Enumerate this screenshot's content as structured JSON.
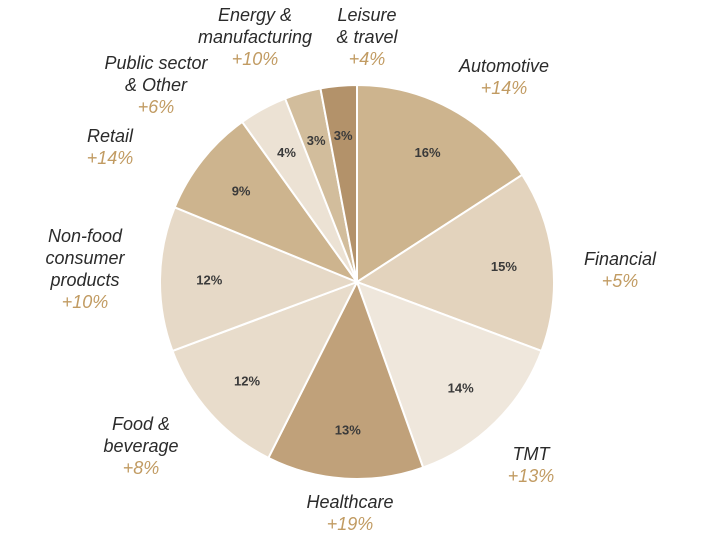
{
  "chart_data": {
    "type": "pie",
    "slices": [
      {
        "name": "Automotive",
        "value": 16,
        "value_label": "16%",
        "growth": "+14%",
        "color": "#cdb48e"
      },
      {
        "name": "Financial",
        "value": 15,
        "value_label": "15%",
        "growth": "+5%",
        "color": "#e3d3bd"
      },
      {
        "name": "TMT",
        "value": 14,
        "value_label": "14%",
        "growth": "+13%",
        "color": "#efe7dc"
      },
      {
        "name": "Healthcare",
        "value": 13,
        "value_label": "13%",
        "growth": "+19%",
        "color": "#c0a17a"
      },
      {
        "name": "Food & beverage",
        "value": 12,
        "value_label": "12%",
        "growth": "+8%",
        "color": "#e8dccb"
      },
      {
        "name": "Non-food consumer products",
        "value": 12,
        "value_label": "12%",
        "growth": "+10%",
        "color": "#e6d9c7"
      },
      {
        "name": "Retail",
        "value": 9,
        "value_label": "9%",
        "growth": "+14%",
        "color": "#cdb48e"
      },
      {
        "name": "Public sector & Other",
        "value": 4,
        "value_label": "4%",
        "growth": "+6%",
        "color": "#ece2d4"
      },
      {
        "name": "Energy & manufacturing",
        "value": 3,
        "value_label": "3%",
        "growth": "+10%",
        "color": "#d2bd9c"
      },
      {
        "name": "Leisure & travel",
        "value": 3,
        "value_label": "3%",
        "growth": "+4%",
        "color": "#b3926a"
      }
    ]
  }
}
